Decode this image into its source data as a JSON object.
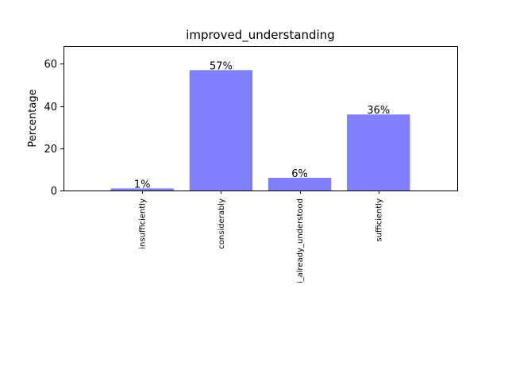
{
  "chart_data": {
    "type": "bar",
    "title": "improved_understanding",
    "xlabel": "",
    "ylabel": "Percentage",
    "categories": [
      "insufficiently",
      "considerably",
      "i_already_understood",
      "sufficiently"
    ],
    "values": [
      1,
      57,
      6,
      36
    ],
    "data_labels": [
      "1%",
      "57%",
      "6%",
      "36%"
    ],
    "ylim": [
      0,
      68.4
    ],
    "yticks": [
      0,
      20,
      40,
      60
    ],
    "xlim": [
      -1,
      4
    ],
    "grid": false,
    "bar_color": "#8080ff"
  }
}
